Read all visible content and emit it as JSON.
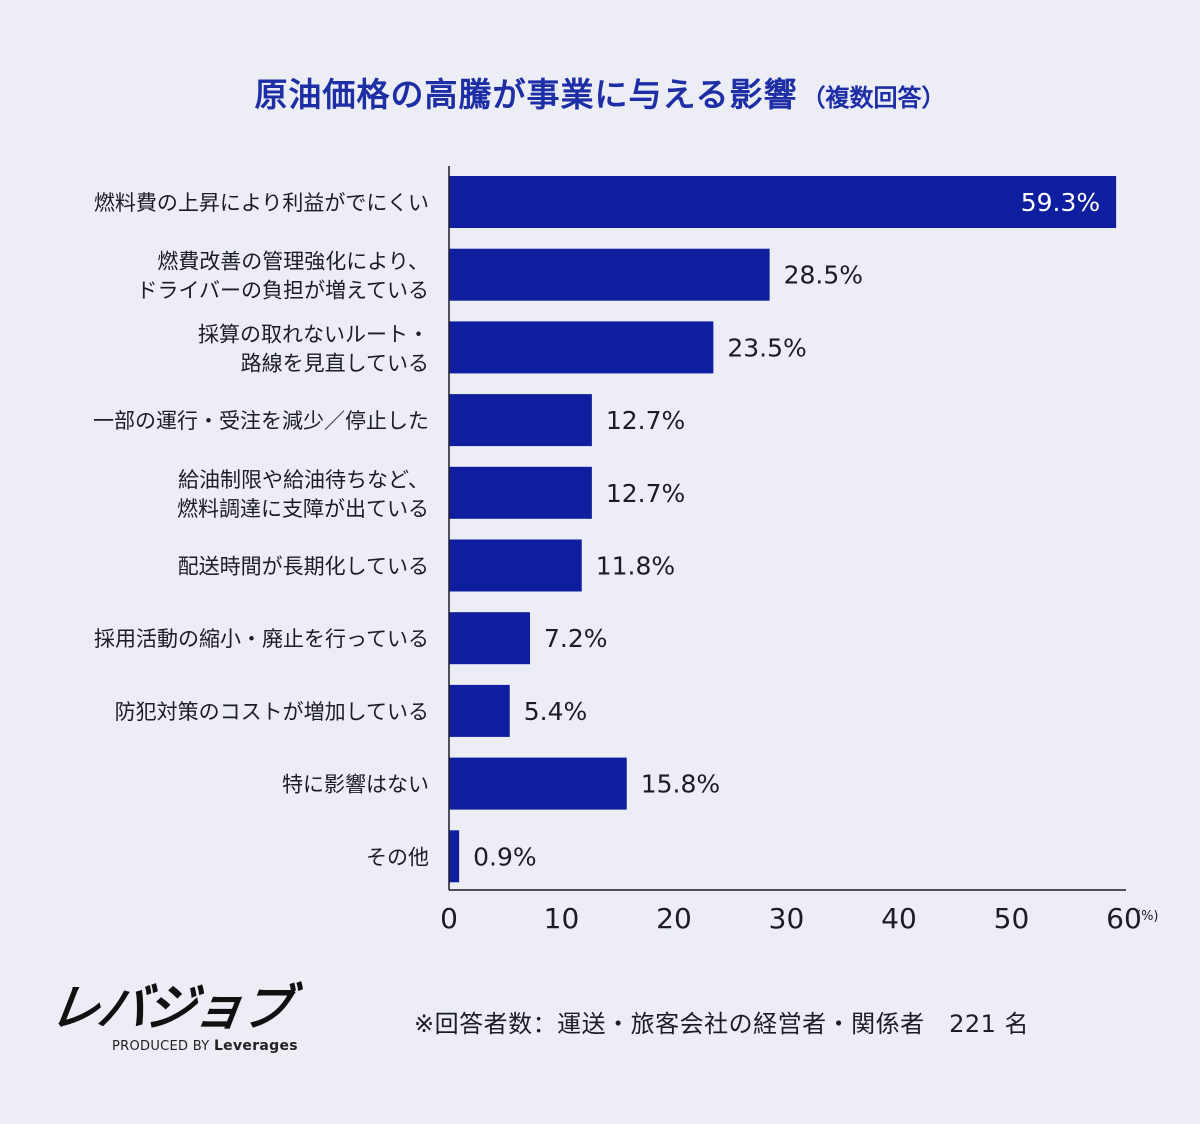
{
  "header": {
    "title": "原油価格の高騰が事業に与える影響",
    "subtitle": "（複数回答）"
  },
  "chart_data": {
    "type": "bar",
    "orientation": "horizontal",
    "title": "原油価格の高騰が事業に与える影響（複数回答）",
    "categories": [
      [
        "燃料費の上昇により利益がでにくい"
      ],
      [
        "燃費改善の管理強化により、",
        "ドライバーの負担が増えている"
      ],
      [
        "採算の取れないルート・",
        "路線を見直している"
      ],
      [
        "一部の運行・受注を減少／停止した"
      ],
      [
        "給油制限や給油待ちなど、",
        "燃料調達に支障が出ている"
      ],
      [
        "配送時間が長期化している"
      ],
      [
        "採用活動の縮小・廃止を行っている"
      ],
      [
        "防犯対策のコストが増加している"
      ],
      [
        "特に影響はない"
      ],
      [
        "その他"
      ]
    ],
    "values": [
      59.3,
      28.5,
      23.5,
      12.7,
      12.7,
      11.8,
      7.2,
      5.4,
      15.8,
      0.9
    ],
    "value_labels": [
      "59.3%",
      "28.5%",
      "23.5%",
      "12.7%",
      "12.7%",
      "11.8%",
      "7.2%",
      "5.4%",
      "15.8%",
      "0.9%"
    ],
    "xlim": [
      0,
      60
    ],
    "xticks": [
      "0",
      "10",
      "20",
      "30",
      "40",
      "50",
      "60"
    ],
    "xunit": "(%)",
    "bar_color": "#0e1e9e",
    "grid": false
  },
  "footer": {
    "logo_text": "レバジョブ",
    "logo_sub_prefix": "PRODUCED BY",
    "logo_sub_brand": "Leverages",
    "note": "※回答者数：運送・旅客会社の経営者・関係者　221 名"
  }
}
